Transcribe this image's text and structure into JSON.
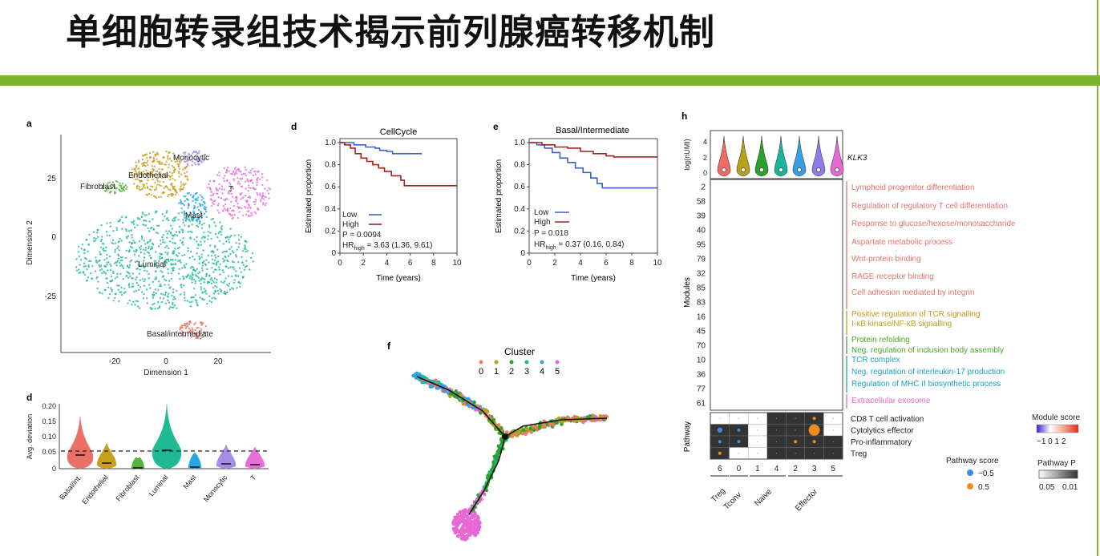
{
  "slide_title": "单细胞转录组技术揭示前列腺癌转移机制",
  "colors": {
    "accent_green": "#79b72a",
    "low": "#3a62c9",
    "high": "#a9201f",
    "effector_dark": "#333333"
  },
  "panel_a": {
    "letter": "a",
    "xlabel": "Dimension 1",
    "ylabel": "Dimension 2",
    "xticks": [
      "-20",
      "0",
      "20"
    ],
    "yticks": [
      "25",
      "0",
      "-25"
    ],
    "clusters": [
      "Fibroblast",
      "Endothelial",
      "Monocytic",
      "T",
      "Mast",
      "Luminal",
      "Basal/intermediate"
    ]
  },
  "panel_d_violin": {
    "letter": "d",
    "ylabel": "Avg. deviation",
    "yticks": [
      "0.20",
      "0.15",
      "0.10",
      "0.05",
      "0"
    ],
    "categories": [
      "Basal/int.",
      "Endothelial",
      "Fibroblast",
      "Luminal",
      "Mast",
      "Monocytic",
      "T"
    ]
  },
  "panel_d_km": {
    "letter": "d",
    "title": "CellCycle",
    "xlabel": "Time (years)",
    "ylabel": "Estimated proportion",
    "xticks": [
      "0",
      "2",
      "4",
      "6",
      "8",
      "10"
    ],
    "yticks": [
      "1.0",
      "0.8",
      "0.6",
      "0.4",
      "0.2",
      "0"
    ],
    "legend": [
      "Low",
      "High"
    ],
    "p": "P = 0.0094",
    "hr_prefix": "HR",
    "hr_sub": "high",
    "hr": " = 3.63 (1.36, 9.61)"
  },
  "panel_e_km": {
    "letter": "e",
    "title": "Basal/Intermediate",
    "xlabel": "Time (years)",
    "ylabel": "Estimated proportion",
    "xticks": [
      "0",
      "2",
      "4",
      "6",
      "8",
      "10"
    ],
    "yticks": [
      "1.0",
      "0.8",
      "0.6",
      "0.4",
      "0.2",
      "0"
    ],
    "legend": [
      "Low",
      "High"
    ],
    "p": "P = 0.018",
    "hr_prefix": "HR",
    "hr_sub": "high",
    "hr": " = 0.37 (0.16, 0.84)"
  },
  "panel_f": {
    "letter": "f",
    "legend_title": "Cluster",
    "cluster_labels": [
      "0",
      "1",
      "2",
      "3",
      "4",
      "5"
    ],
    "cluster_colors": [
      "#f07a6e",
      "#b8a21a",
      "#2aa12a",
      "#19b69b",
      "#3a9ee6",
      "#e667d6"
    ]
  },
  "panel_h": {
    "letter": "h",
    "violin_ylabel": "log(nUMI)",
    "violin_yticks": [
      "4",
      "2",
      "0"
    ],
    "gene": "KLK3",
    "modules_label": "Modules",
    "pathway_label": "Pathway",
    "modules": [
      "2",
      "58",
      "39",
      "40",
      "95",
      "79",
      "32",
      "85",
      "83",
      "16",
      "45",
      "70",
      "10",
      "36",
      "77",
      "61"
    ],
    "module_terms": [
      {
        "text": "Lymphoid progenitor differentiation",
        "color": "#e7746d"
      },
      {
        "text": "Regulation of regulatory T cell differentiation",
        "color": "#e7746d"
      },
      {
        "text": "Response to glucose/hexose/monosaccharide",
        "color": "#e7746d"
      },
      {
        "text": "Aspartate metabolic process",
        "color": "#e7746d"
      },
      {
        "text": "Wnt-protein binding",
        "color": "#e7746d"
      },
      {
        "text": "RAGE receptor binding",
        "color": "#e7746d"
      },
      {
        "text": "Cell adhesion mediated by integrin",
        "color": "#e7746d"
      },
      {
        "text": "Positive regulation of TCR signalling",
        "color": "#c49a1a"
      },
      {
        "text": "I-κB kinase/NF-κB signalling",
        "color": "#c49a1a"
      },
      {
        "text": "Protein refolding",
        "color": "#4aa626"
      },
      {
        "text": "Neg. regulation of inclusion body assembly",
        "color": "#4aa626"
      },
      {
        "text": "TCR complex",
        "color": "#1aa3c4"
      },
      {
        "text": "Neg. regulation of interleukin-17 production",
        "color": "#1aa3c4"
      },
      {
        "text": "Regulation of MHC II biosynthetic process",
        "color": "#1aa3c4"
      },
      {
        "text": "Extracellular exosome",
        "color": "#e667d6"
      }
    ],
    "pathways": [
      "CD8 T cell activation",
      "Cytolytics effector",
      "Pro-inflammatory",
      "Treg"
    ],
    "columns": [
      "6",
      "0",
      "1",
      "4",
      "2",
      "3",
      "5"
    ],
    "groups": [
      "Treg",
      "Tconv",
      "Naive",
      "Effector"
    ],
    "module_score_title": "Module score",
    "module_score_ticks": "−1 0 1 2",
    "pathway_score_title": "Pathway score",
    "pathway_score_items": [
      "−0.5",
      "0.5"
    ],
    "pathway_p_title": "Pathway P",
    "pathway_p_ticks": [
      "0.05",
      "0.01"
    ]
  }
}
